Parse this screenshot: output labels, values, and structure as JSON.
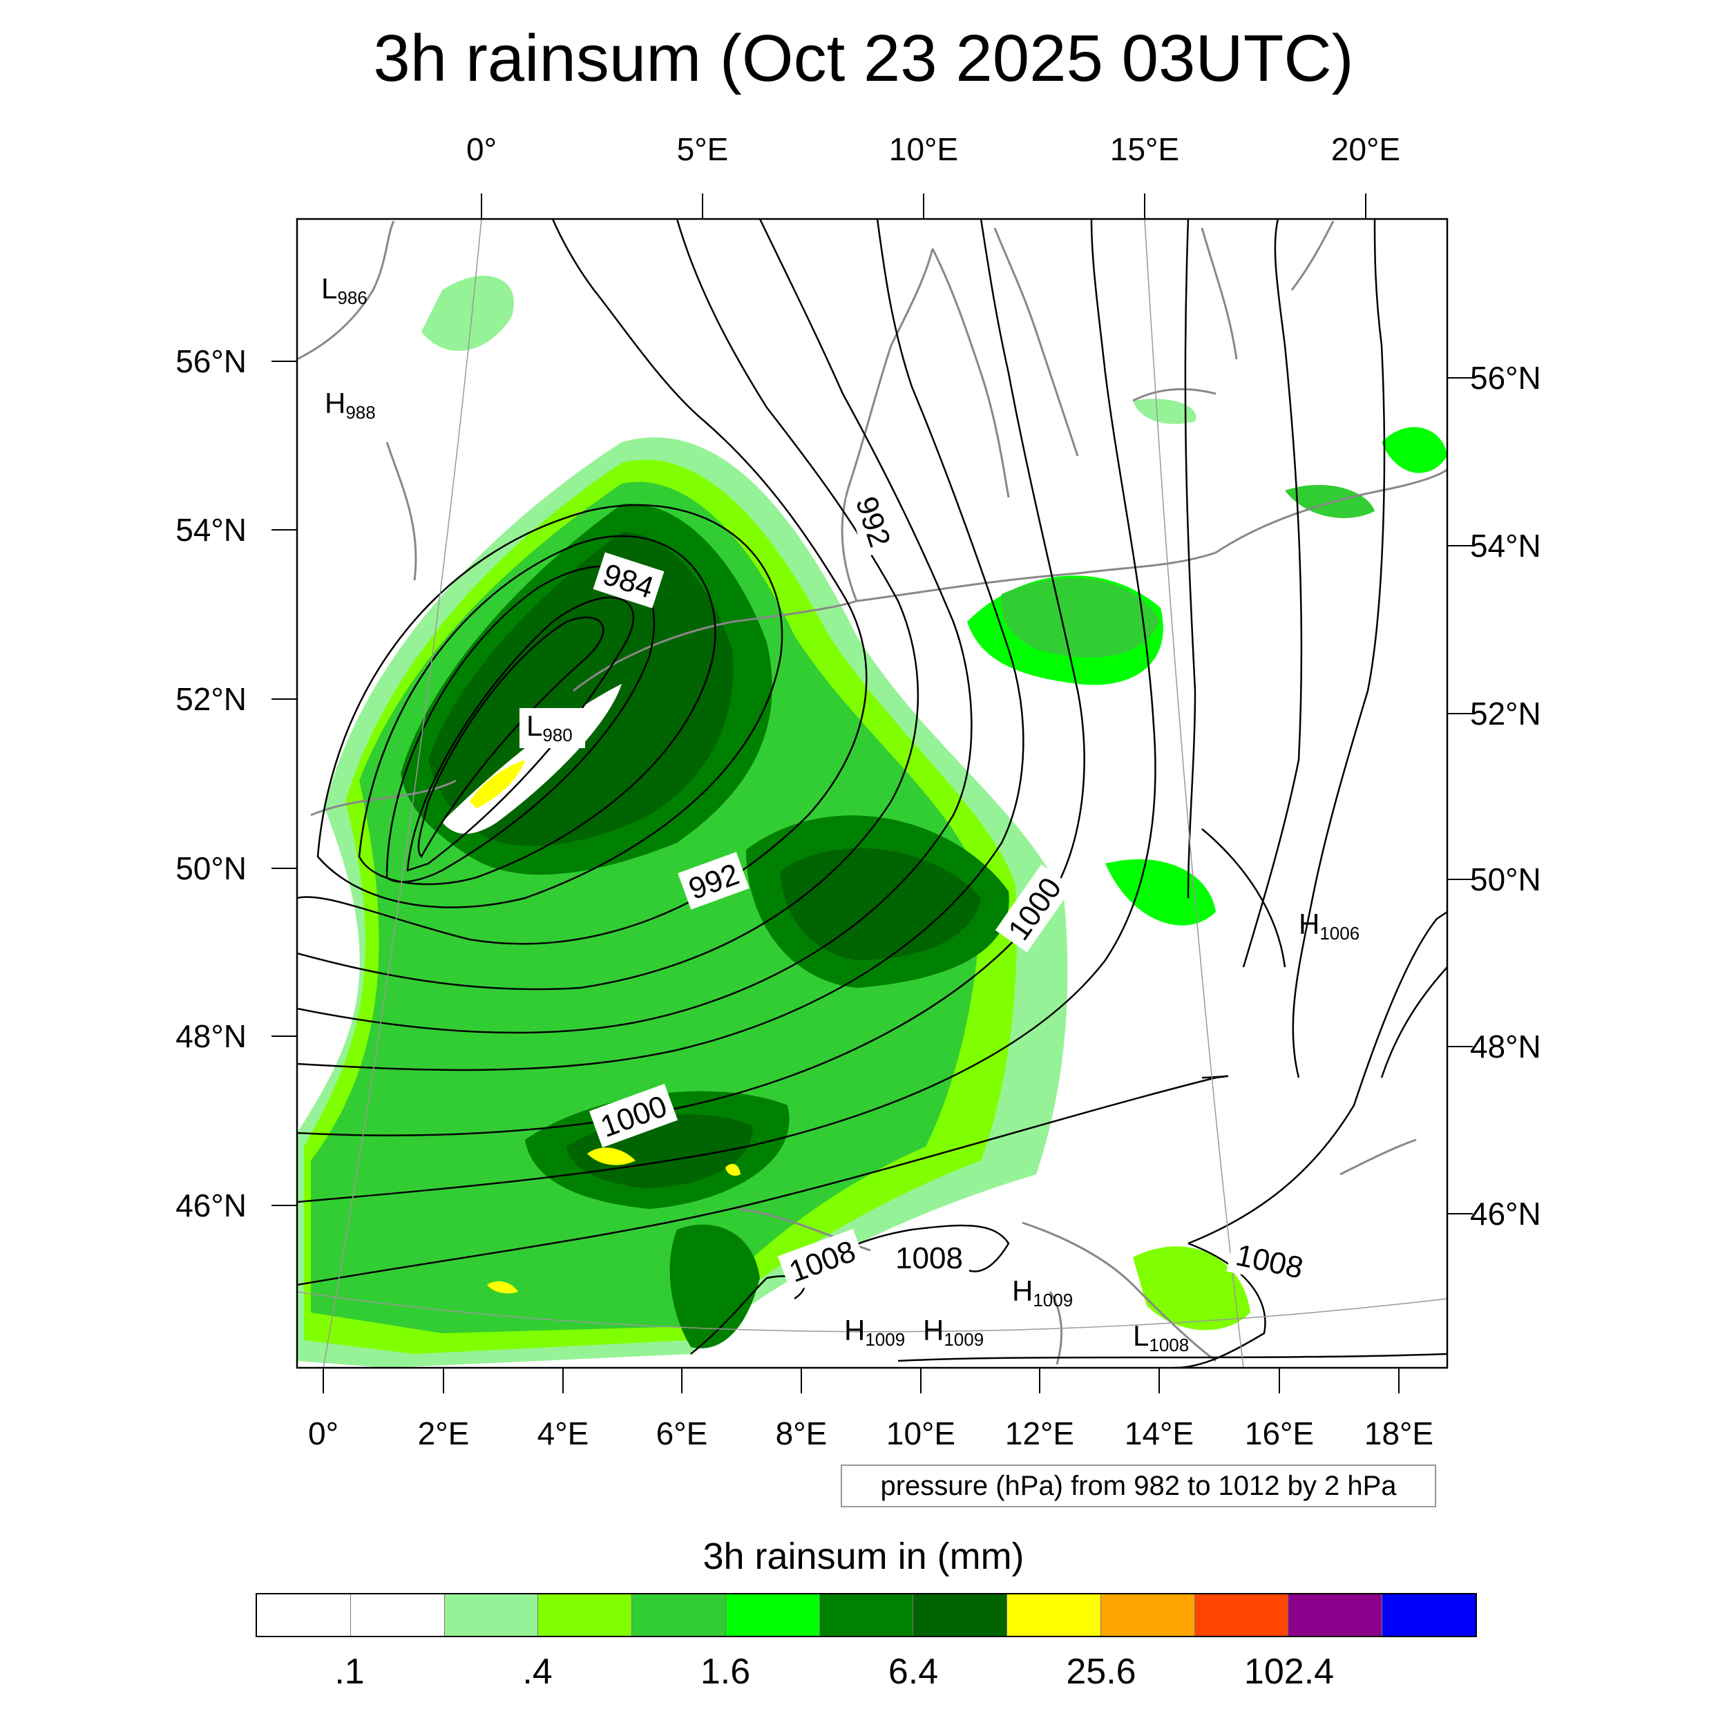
{
  "title": "3h rainsum (Oct 23 2025 03UTC)",
  "top_lon_labels": [
    "0°",
    "5°E",
    "10°E",
    "15°E",
    "20°E"
  ],
  "bottom_lon_labels": [
    "0°",
    "2°E",
    "4°E",
    "6°E",
    "8°E",
    "10°E",
    "12°E",
    "14°E",
    "16°E",
    "18°E"
  ],
  "left_lat_labels": [
    "56°N",
    "54°N",
    "52°N",
    "50°N",
    "48°N",
    "46°N"
  ],
  "right_lat_labels": [
    "56°N",
    "54°N",
    "52°N",
    "50°N",
    "48°N",
    "46°N"
  ],
  "contour_info": "pressure (hPa) from 982 to 1012 by 2 hPa",
  "contour_labels": [
    {
      "text": "984",
      "angle": 18
    },
    {
      "text": "992",
      "angle": 72
    },
    {
      "text": "992",
      "angle": -20
    },
    {
      "text": "1000",
      "angle": -55
    },
    {
      "text": "1000",
      "angle": -20
    },
    {
      "text": "1008",
      "angle": -20
    },
    {
      "text": "1008",
      "angle": 0
    },
    {
      "text": "1008",
      "angle": 12
    }
  ],
  "pressure_centers": [
    {
      "type": "L",
      "value": "986"
    },
    {
      "type": "H",
      "value": "988"
    },
    {
      "type": "L",
      "value": "980"
    },
    {
      "type": "H",
      "value": "1006"
    },
    {
      "type": "H",
      "value": "1009"
    },
    {
      "type": "H",
      "value": "1009"
    },
    {
      "type": "H",
      "value": "1009"
    },
    {
      "type": "L",
      "value": "1008"
    }
  ],
  "colorbar": {
    "title": "3h rainsum in (mm)",
    "colors": [
      "#ffffff",
      "#ffffff",
      "#96f296",
      "#80ff00",
      "#32cd32",
      "#00ff00",
      "#008000",
      "#006400",
      "#ffff00",
      "#ffa500",
      "#ff4500",
      "#8b008b",
      "#0000ff"
    ],
    "tick_labels": [
      ".1",
      ".4",
      "1.6",
      "6.4",
      "25.6",
      "102.4"
    ]
  },
  "precip_colors": {
    "light": "#96f296",
    "lime": "#80ff00",
    "limegreen": "#32cd32",
    "green_bright": "#00ff00",
    "green": "#008000",
    "darkgreen": "#006400",
    "yellow": "#ffff00"
  }
}
